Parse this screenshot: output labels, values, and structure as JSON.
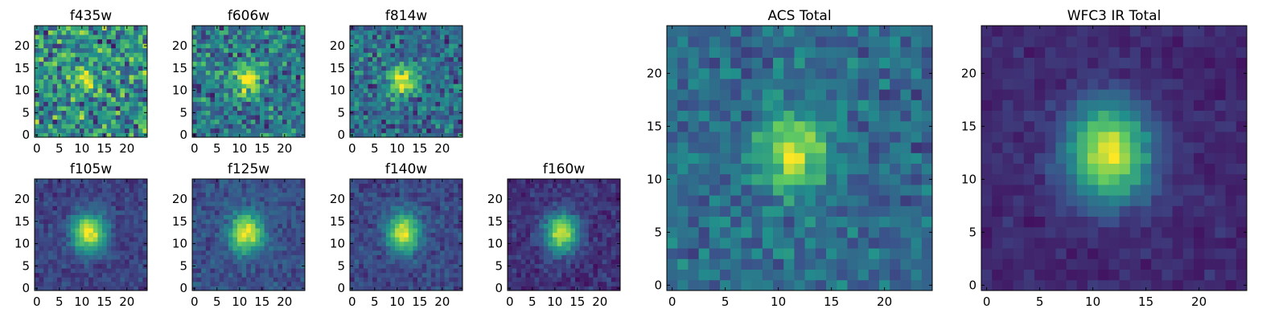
{
  "chart_data": [
    {
      "type": "heatmap",
      "title": "f435w",
      "xlim": [
        -0.5,
        24.5
      ],
      "ylim": [
        -0.5,
        24.5
      ],
      "xticks": [
        0,
        5,
        10,
        15,
        20
      ],
      "yticks": [
        0,
        5,
        10,
        15,
        20
      ],
      "center": [
        11.5,
        12.0
      ],
      "sigma": 2.6,
      "peak": 0.35,
      "noise": 0.45,
      "floor": 0.5,
      "seed": 11
    },
    {
      "type": "heatmap",
      "title": "f606w",
      "xlim": [
        -0.5,
        24.5
      ],
      "ylim": [
        -0.5,
        24.5
      ],
      "xticks": [
        0,
        5,
        10,
        15,
        20
      ],
      "yticks": [
        0,
        5,
        10,
        15,
        20
      ],
      "center": [
        11.5,
        12.5
      ],
      "sigma": 2.4,
      "peak": 0.6,
      "noise": 0.35,
      "floor": 0.4,
      "seed": 23
    },
    {
      "type": "heatmap",
      "title": "f814w",
      "xlim": [
        -0.5,
        24.5
      ],
      "ylim": [
        -0.5,
        24.5
      ],
      "xticks": [
        0,
        5,
        10,
        15,
        20
      ],
      "yticks": [
        0,
        5,
        10,
        15,
        20
      ],
      "center": [
        11.5,
        12.5
      ],
      "sigma": 2.5,
      "peak": 0.65,
      "noise": 0.3,
      "floor": 0.35,
      "seed": 37
    },
    {
      "type": "heatmap",
      "title": "f105w",
      "xlim": [
        -0.5,
        24.5
      ],
      "ylim": [
        -0.5,
        24.5
      ],
      "xticks": [
        0,
        5,
        10,
        15,
        20
      ],
      "yticks": [
        0,
        5,
        10,
        15,
        20
      ],
      "center": [
        11.5,
        12.5
      ],
      "sigma": 3.0,
      "peak": 0.8,
      "noise": 0.12,
      "floor": 0.2,
      "seed": 41
    },
    {
      "type": "heatmap",
      "title": "f125w",
      "xlim": [
        -0.5,
        24.5
      ],
      "ylim": [
        -0.5,
        24.5
      ],
      "xticks": [
        0,
        5,
        10,
        15,
        20
      ],
      "yticks": [
        0,
        5,
        10,
        15,
        20
      ],
      "center": [
        11.5,
        12.5
      ],
      "sigma": 3.0,
      "peak": 0.75,
      "noise": 0.13,
      "floor": 0.25,
      "seed": 53
    },
    {
      "type": "heatmap",
      "title": "f140w",
      "xlim": [
        -0.5,
        24.5
      ],
      "ylim": [
        -0.5,
        24.5
      ],
      "xticks": [
        0,
        5,
        10,
        15,
        20
      ],
      "yticks": [
        0,
        5,
        10,
        15,
        20
      ],
      "center": [
        11.5,
        12.5
      ],
      "sigma": 3.0,
      "peak": 0.75,
      "noise": 0.13,
      "floor": 0.22,
      "seed": 67
    },
    {
      "type": "heatmap",
      "title": "f160w",
      "xlim": [
        -0.5,
        24.5
      ],
      "ylim": [
        -0.5,
        24.5
      ],
      "xticks": [
        0,
        5,
        10,
        15,
        20
      ],
      "yticks": [
        0,
        5,
        10,
        15,
        20
      ],
      "center": [
        11.5,
        12.5
      ],
      "sigma": 3.0,
      "peak": 0.8,
      "noise": 0.12,
      "floor": 0.15,
      "seed": 79
    },
    {
      "type": "heatmap",
      "title": "ACS Total",
      "xlim": [
        -0.5,
        24.5
      ],
      "ylim": [
        -0.5,
        24.5
      ],
      "xticks": [
        0,
        5,
        10,
        15,
        20
      ],
      "yticks": [
        0,
        5,
        10,
        15,
        20
      ],
      "center": [
        11.5,
        12.5
      ],
      "sigma": 2.6,
      "peak": 0.6,
      "noise": 0.2,
      "floor": 0.35,
      "seed": 97
    },
    {
      "type": "heatmap",
      "title": "WFC3 IR Total",
      "xlim": [
        -0.5,
        24.5
      ],
      "ylim": [
        -0.5,
        24.5
      ],
      "xticks": [
        0,
        5,
        10,
        15,
        20
      ],
      "yticks": [
        0,
        5,
        10,
        15,
        20
      ],
      "center": [
        11.5,
        12.5
      ],
      "sigma": 3.2,
      "peak": 0.85,
      "noise": 0.08,
      "floor": 0.12,
      "seed": 113
    }
  ],
  "colors": {
    "colormap": [
      "#440154",
      "#3b528b",
      "#21918c",
      "#5ec962",
      "#fde725"
    ],
    "axes": "#000000",
    "background": "#ffffff"
  }
}
